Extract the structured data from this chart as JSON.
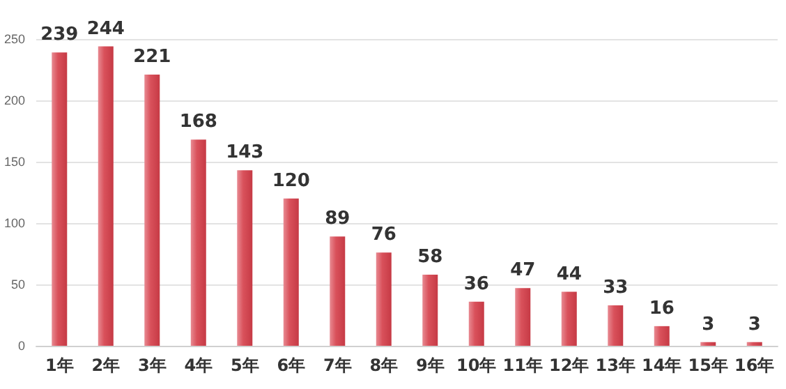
{
  "chart_data": {
    "type": "bar",
    "categories": [
      "1年",
      "2年",
      "3年",
      "4年",
      "5年",
      "6年",
      "7年",
      "8年",
      "9年",
      "10年",
      "11年",
      "12年",
      "13年",
      "14年",
      "15年",
      "16年"
    ],
    "values": [
      239,
      244,
      221,
      168,
      143,
      120,
      89,
      76,
      58,
      36,
      47,
      44,
      33,
      16,
      3,
      3
    ],
    "color": "#d9515b",
    "ylim": [
      0,
      250
    ],
    "yticks": [
      0,
      50,
      100,
      150,
      200,
      250
    ],
    "grid": "y",
    "data_labels": true
  }
}
